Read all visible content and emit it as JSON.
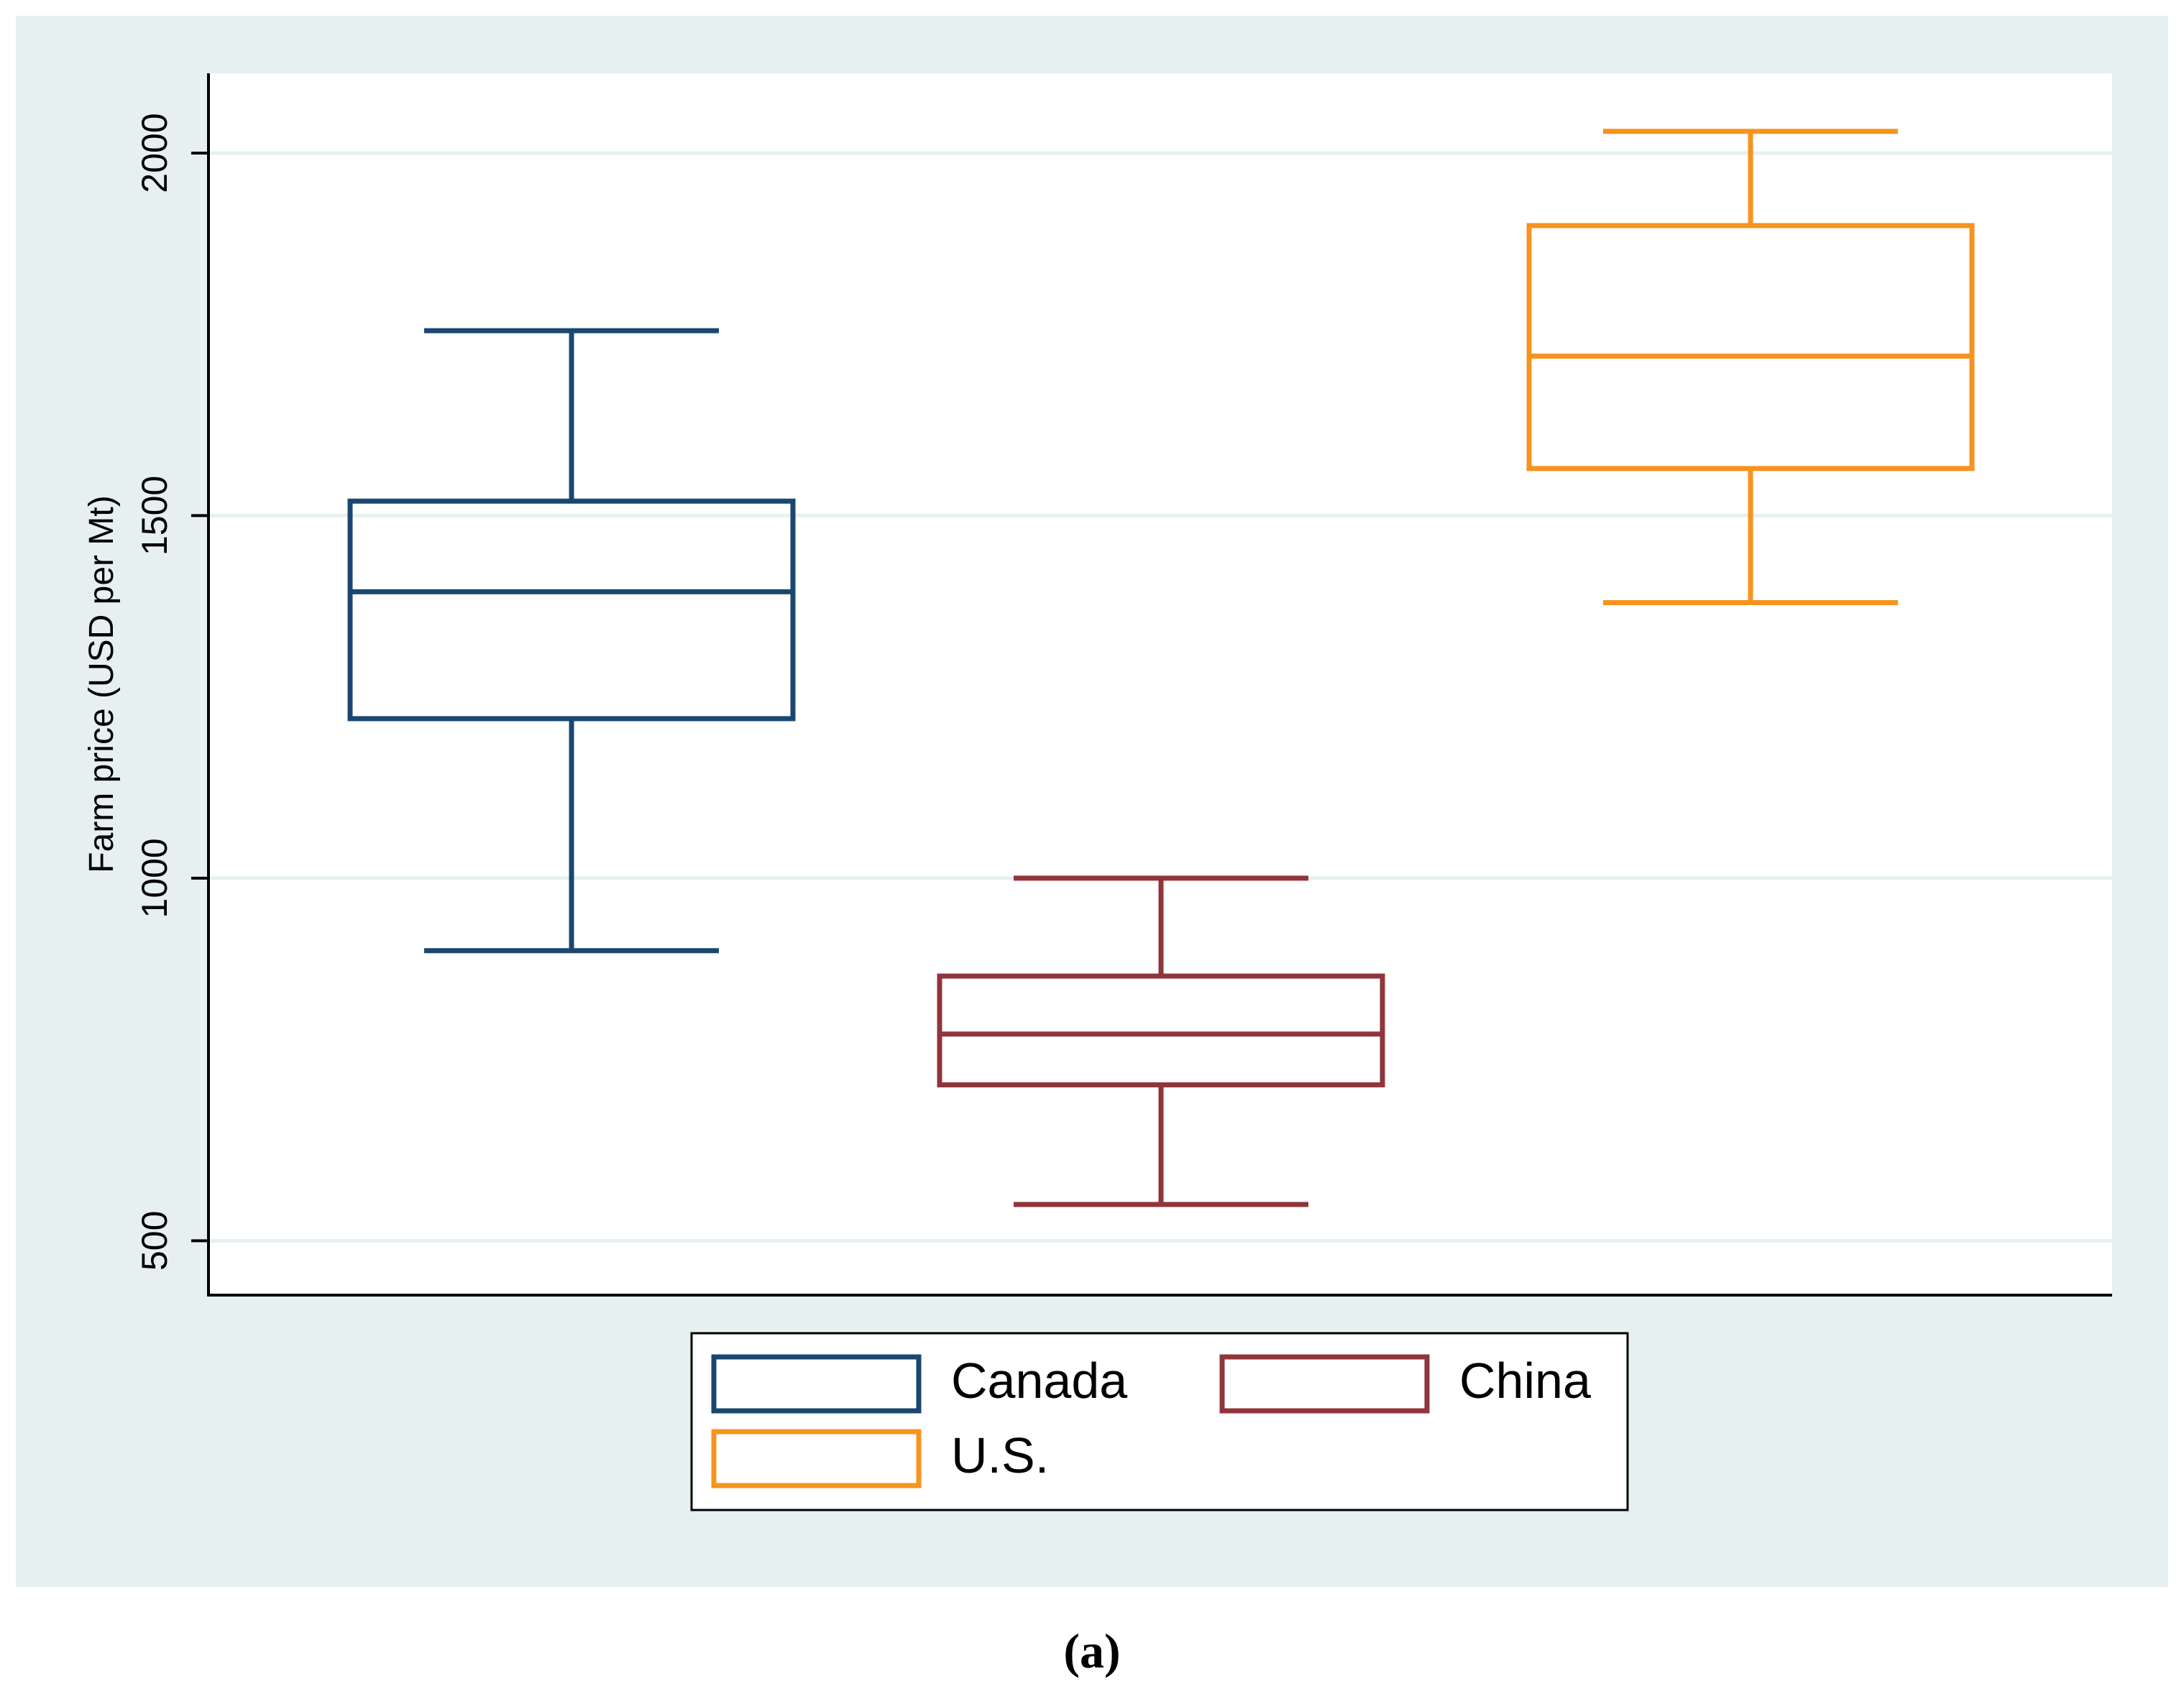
{
  "chart_data": {
    "type": "box",
    "ylabel": "Farm price (USD per Mt)",
    "xlabel": "",
    "ylim": [
      425,
      2110
    ],
    "yticks": [
      500,
      1000,
      1500,
      2000
    ],
    "grid": true,
    "legend_position": "bottom",
    "series": [
      {
        "name": "Canada",
        "color": "#1a476f",
        "lower_whisker": 900,
        "q1": 1220,
        "median": 1395,
        "q3": 1520,
        "upper_whisker": 1755
      },
      {
        "name": "China",
        "color": "#90353b",
        "lower_whisker": 550,
        "q1": 715,
        "median": 785,
        "q3": 865,
        "upper_whisker": 1000
      },
      {
        "name": "U.S.",
        "color": "#f7931e",
        "lower_whisker": 1380,
        "q1": 1565,
        "median": 1720,
        "q3": 1900,
        "upper_whisker": 2030
      }
    ]
  },
  "panel_label": "(a)",
  "colors": {
    "outer_background": "#e6f0f0",
    "plot_background": "#ffffff",
    "gridline": "#e6f0f0",
    "axis": "#000000"
  }
}
